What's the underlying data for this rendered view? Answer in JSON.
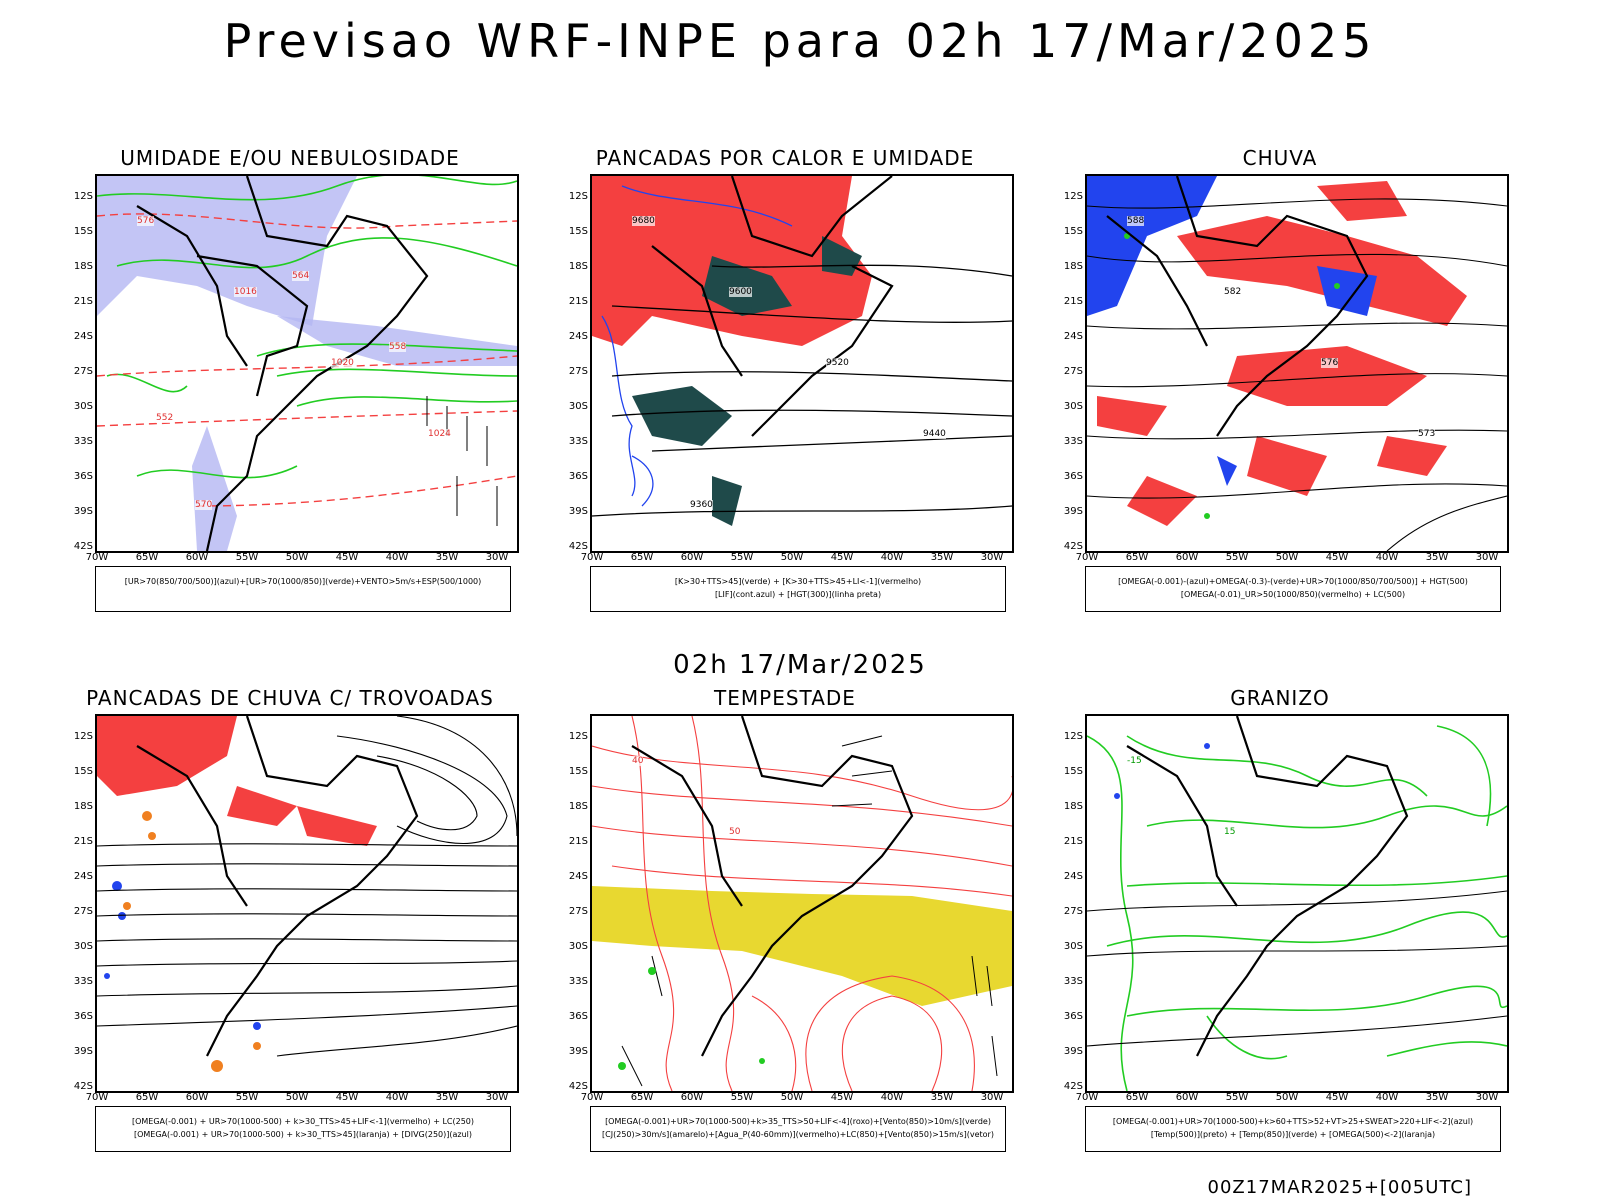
{
  "header": {
    "title": "Previsao WRF-INPE  para 02h 17/Mar/2025"
  },
  "mid_time": "02h 17/Mar/2025",
  "footer": "00Z17MAR2025+[005UTC]",
  "colors": {
    "red": "#f44040",
    "green": "#22cc22",
    "blue": "#2244ee",
    "lavender": "#b4b6f2",
    "darkteal": "#1f4a4a",
    "yellow": "#e8d830",
    "orange": "#f08020"
  },
  "axes": {
    "lat_labels": [
      "12S",
      "15S",
      "18S",
      "21S",
      "24S",
      "27S",
      "30S",
      "33S",
      "36S",
      "39S",
      "42S"
    ],
    "lon_labels": [
      "70W",
      "65W",
      "60W",
      "55W",
      "50W",
      "45W",
      "40W",
      "35W",
      "30W"
    ]
  },
  "panels": [
    {
      "title": "UMIDADE E/OU NEBULOSIDADE",
      "legend": [
        "[UR>70(850/700/500)](azul)+[UR>70(1000/850)](verde)+VENTO>5m/s+ESP(500/1000)"
      ],
      "contour_labels": [
        "576",
        "1016",
        "1020",
        "1024",
        "570",
        "564",
        "558",
        "552"
      ]
    },
    {
      "title": "PANCADAS POR CALOR E UMIDADE",
      "legend": [
        "[K>30+TTS>45](verde) + [K>30+TTS>45+LI<-1](vermelho)",
        "[LIF](cont.azul) + [HGT(300)](linha preta)"
      ],
      "contour_labels": [
        "9680",
        "9600",
        "9520",
        "9440",
        "9360"
      ]
    },
    {
      "title": "CHUVA",
      "legend": [
        "[OMEGA(-0.001)-(azul)+OMEGA(-0.3)-(verde)+UR>70(1000/850/700/500)] + HGT(500)",
        "[OMEGA(-0.01)_UR>50(1000/850)(vermelho) + LC(500)"
      ],
      "contour_labels": [
        "588",
        "582",
        "576",
        "573"
      ]
    },
    {
      "title": "PANCADAS DE CHUVA C/ TROVOADAS",
      "legend": [
        "[OMEGA(-0.001) + UR>70(1000-500) + k>30_TTS>45+LIF<-1](vermelho) + LC(250)",
        "[OMEGA(-0.001) + UR>70(1000-500) + k>30_TTS>45](laranja) + [DIVG(250)](azul)"
      ],
      "contour_labels": []
    },
    {
      "title": "TEMPESTADE",
      "legend": [
        "[OMEGA(-0.001)+UR>70(1000-500)+k>35_TTS>50+LIF<-4](roxo)+[Vento(850)>10m/s](verde)",
        "[CJ(250)>30m/s](amarelo)+[Agua_P(40-60mm)](vermelho)+LC(850)+[Vento(850)>15m/s](vetor)"
      ],
      "contour_labels": [
        "40",
        "50"
      ]
    },
    {
      "title": "GRANIZO",
      "legend": [
        "[OMEGA(-0.001)+UR>70(1000-500)+k>60+TTS>52+VT>25+SWEAT>220+LIF<-2](azul)",
        "[Temp(500)](preto) + [Temp(850)](verde) + [OMEGA(500)<-2](laranja)"
      ],
      "contour_labels": [
        "-15",
        "15"
      ]
    }
  ]
}
